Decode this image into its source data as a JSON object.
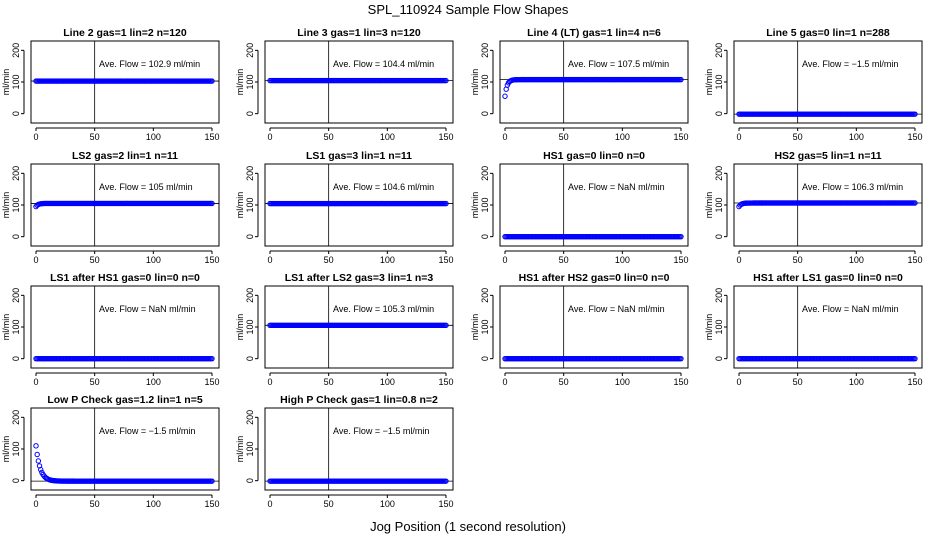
{
  "figure": {
    "title": "SPL_110924  Sample Flow Shapes",
    "xlabel": "Jog Position (1 second resolution)"
  },
  "chart_data": [
    {
      "type": "scatter",
      "title": "Line 2 gas=1 lin=2 n=120",
      "ylabel": "ml/min",
      "xlim": [
        0,
        150
      ],
      "ylim": [
        -20,
        220
      ],
      "xticks": [
        0,
        50,
        100,
        150
      ],
      "yticks": [
        0,
        100,
        200
      ],
      "vline": 50,
      "annotation": "Ave. Flow =  102.9  ml/min",
      "mean_line": 102.9,
      "series": [
        {
          "color": "#0000ff",
          "points": "flat",
          "level": 102.9
        }
      ]
    },
    {
      "type": "scatter",
      "title": "Line 3 gas=1 lin=3 n=120",
      "ylabel": "ml/min",
      "xlim": [
        0,
        150
      ],
      "ylim": [
        -20,
        220
      ],
      "xticks": [
        0,
        50,
        100,
        150
      ],
      "yticks": [
        0,
        100,
        200
      ],
      "vline": 50,
      "annotation": "Ave. Flow =  104.4  ml/min",
      "mean_line": 104.4,
      "series": [
        {
          "color": "#0000ff",
          "points": "flat",
          "level": 104.4
        }
      ]
    },
    {
      "type": "scatter",
      "title": "Line 4 (LT) gas=1 lin=4 n=6",
      "ylabel": "ml/min",
      "xlim": [
        0,
        150
      ],
      "ylim": [
        -20,
        220
      ],
      "xticks": [
        0,
        50,
        100,
        150
      ],
      "yticks": [
        0,
        100,
        200
      ],
      "vline": 50,
      "annotation": "Ave. Flow =  107.5  ml/min",
      "mean_line": 107.5,
      "series": [
        {
          "color": "#0000ff",
          "points": "rise",
          "level": 107.5,
          "start": 55
        }
      ]
    },
    {
      "type": "scatter",
      "title": "Line 5 gas=0 lin=1 n=288",
      "ylabel": "ml/min",
      "xlim": [
        0,
        150
      ],
      "ylim": [
        -20,
        220
      ],
      "xticks": [
        0,
        50,
        100,
        150
      ],
      "yticks": [
        0,
        100,
        200
      ],
      "vline": 50,
      "annotation": "Ave. Flow =  −1.5  ml/min",
      "mean_line": -1.5,
      "series": [
        {
          "color": "#0000ff",
          "points": "flat",
          "level": -1.5
        }
      ]
    },
    {
      "type": "scatter",
      "title": "LS2 gas=2 lin=1 n=11",
      "ylabel": "ml/min",
      "xlim": [
        0,
        150
      ],
      "ylim": [
        -20,
        220
      ],
      "xticks": [
        0,
        50,
        100,
        150
      ],
      "yticks": [
        0,
        100,
        200
      ],
      "vline": 50,
      "annotation": "Ave. Flow =  105  ml/min",
      "mean_line": 105,
      "series": [
        {
          "color": "#0000ff",
          "points": "rise",
          "level": 105,
          "start": 95
        }
      ]
    },
    {
      "type": "scatter",
      "title": "LS1 gas=3 lin=1 n=11",
      "ylabel": "ml/min",
      "xlim": [
        0,
        150
      ],
      "ylim": [
        -20,
        220
      ],
      "xticks": [
        0,
        50,
        100,
        150
      ],
      "yticks": [
        0,
        100,
        200
      ],
      "vline": 50,
      "annotation": "Ave. Flow =  104.6  ml/min",
      "mean_line": 104.6,
      "series": [
        {
          "color": "#0000ff",
          "points": "flat",
          "level": 104.6
        }
      ]
    },
    {
      "type": "scatter",
      "title": "HS1 gas=0 lin=0 n=0",
      "ylabel": "ml/min",
      "xlim": [
        0,
        150
      ],
      "ylim": [
        -20,
        220
      ],
      "xticks": [
        0,
        50,
        100,
        150
      ],
      "yticks": [
        0,
        100,
        200
      ],
      "vline": 50,
      "annotation": "Ave. Flow =  NaN  ml/min",
      "mean_line": null,
      "series": [
        {
          "color": "#0000ff",
          "points": "flat",
          "level": 0
        }
      ]
    },
    {
      "type": "scatter",
      "title": "HS2 gas=5 lin=1 n=11",
      "ylabel": "ml/min",
      "xlim": [
        0,
        150
      ],
      "ylim": [
        -20,
        220
      ],
      "xticks": [
        0,
        50,
        100,
        150
      ],
      "yticks": [
        0,
        100,
        200
      ],
      "vline": 50,
      "annotation": "Ave. Flow =  106.3  ml/min",
      "mean_line": 106.3,
      "series": [
        {
          "color": "#0000ff",
          "points": "rise",
          "level": 106.3,
          "start": 95
        }
      ]
    },
    {
      "type": "scatter",
      "title": "LS1 after HS1 gas=0 lin=0 n=0",
      "ylabel": "ml/min",
      "xlim": [
        0,
        150
      ],
      "ylim": [
        -20,
        220
      ],
      "xticks": [
        0,
        50,
        100,
        150
      ],
      "yticks": [
        0,
        100,
        200
      ],
      "vline": 50,
      "annotation": "Ave. Flow =  NaN  ml/min",
      "mean_line": null,
      "series": [
        {
          "color": "#0000ff",
          "points": "flat",
          "level": 0
        }
      ]
    },
    {
      "type": "scatter",
      "title": "LS1 after LS2 gas=3 lin=1 n=3",
      "ylabel": "ml/min",
      "xlim": [
        0,
        150
      ],
      "ylim": [
        -20,
        220
      ],
      "xticks": [
        0,
        50,
        100,
        150
      ],
      "yticks": [
        0,
        100,
        200
      ],
      "vline": 50,
      "annotation": "Ave. Flow =  105.3  ml/min",
      "mean_line": 105.3,
      "series": [
        {
          "color": "#0000ff",
          "points": "flat",
          "level": 105.3
        }
      ]
    },
    {
      "type": "scatter",
      "title": "HS1 after HS2 gas=0 lin=0 n=0",
      "ylabel": "ml/min",
      "xlim": [
        0,
        150
      ],
      "ylim": [
        -20,
        220
      ],
      "xticks": [
        0,
        50,
        100,
        150
      ],
      "yticks": [
        0,
        100,
        200
      ],
      "vline": 50,
      "annotation": "Ave. Flow =  NaN  ml/min",
      "mean_line": null,
      "series": [
        {
          "color": "#0000ff",
          "points": "flat",
          "level": 0
        }
      ]
    },
    {
      "type": "scatter",
      "title": "HS1 after LS1 gas=0 lin=0 n=0",
      "ylabel": "ml/min",
      "xlim": [
        0,
        150
      ],
      "ylim": [
        -20,
        220
      ],
      "xticks": [
        0,
        50,
        100,
        150
      ],
      "yticks": [
        0,
        100,
        200
      ],
      "vline": 50,
      "annotation": "Ave. Flow =  NaN  ml/min",
      "mean_line": null,
      "series": [
        {
          "color": "#0000ff",
          "points": "flat",
          "level": 0
        }
      ]
    },
    {
      "type": "scatter",
      "title": "Low P Check gas=1.2 lin=1 n=5",
      "ylabel": "ml/min",
      "xlim": [
        0,
        150
      ],
      "ylim": [
        -20,
        220
      ],
      "xticks": [
        0,
        50,
        100,
        150
      ],
      "yticks": [
        0,
        100,
        200
      ],
      "vline": 50,
      "annotation": "Ave. Flow =  −1.5  ml/min",
      "mean_line": -1.5,
      "series": [
        {
          "color": "#0000ff",
          "points": "decay",
          "level": -1.5,
          "start": 110
        }
      ]
    },
    {
      "type": "scatter",
      "title": "High P Check gas=1 lin=0.8 n=2",
      "ylabel": "ml/min",
      "xlim": [
        0,
        150
      ],
      "ylim": [
        -20,
        220
      ],
      "xticks": [
        0,
        50,
        100,
        150
      ],
      "yticks": [
        0,
        100,
        200
      ],
      "vline": 50,
      "annotation": "Ave. Flow =  −1.5  ml/min",
      "mean_line": -1.5,
      "series": [
        {
          "color": "#0000ff",
          "points": "flat",
          "level": -1.5
        }
      ]
    }
  ]
}
